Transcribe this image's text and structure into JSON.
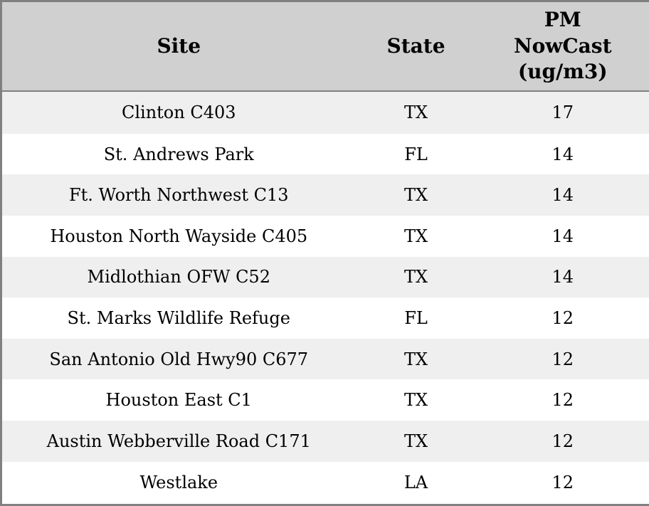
{
  "header": {
    "site": "Site",
    "state": "State",
    "pm": "PM\nNowCast\n(ug/m3)"
  },
  "rows": [
    {
      "site": "Clinton C403",
      "state": "TX",
      "pm": "17"
    },
    {
      "site": "St. Andrews Park",
      "state": "FL",
      "pm": "14"
    },
    {
      "site": "Ft. Worth Northwest C13",
      "state": "TX",
      "pm": "14"
    },
    {
      "site": "Houston North Wayside C405",
      "state": "TX",
      "pm": "14"
    },
    {
      "site": "Midlothian OFW C52",
      "state": "TX",
      "pm": "14"
    },
    {
      "site": "St. Marks Wildlife Refuge",
      "state": "FL",
      "pm": "12"
    },
    {
      "site": "San Antonio Old Hwy90 C677",
      "state": "TX",
      "pm": "12"
    },
    {
      "site": "Houston East C1",
      "state": "TX",
      "pm": "12"
    },
    {
      "site": "Austin Webberville Road C171",
      "state": "TX",
      "pm": "12"
    },
    {
      "site": "Westlake",
      "state": "LA",
      "pm": "12"
    }
  ],
  "colors": {
    "header_bg": "#d0d0d0",
    "row_alt_bg": "#efefef",
    "row_bg": "#ffffff",
    "border": "#808080",
    "text": "#000000"
  },
  "chart_data": {
    "type": "table",
    "title": "",
    "columns": [
      "Site",
      "State",
      "PM NowCast (ug/m3)"
    ],
    "rows": [
      [
        "Clinton C403",
        "TX",
        17
      ],
      [
        "St. Andrews Park",
        "FL",
        14
      ],
      [
        "Ft. Worth Northwest C13",
        "TX",
        14
      ],
      [
        "Houston North Wayside C405",
        "TX",
        14
      ],
      [
        "Midlothian OFW C52",
        "TX",
        14
      ],
      [
        "St. Marks Wildlife Refuge",
        "FL",
        12
      ],
      [
        "San Antonio Old Hwy90 C677",
        "TX",
        12
      ],
      [
        "Houston East C1",
        "TX",
        12
      ],
      [
        "Austin Webberville Road C171",
        "TX",
        12
      ],
      [
        "Westlake",
        "LA",
        12
      ]
    ]
  }
}
